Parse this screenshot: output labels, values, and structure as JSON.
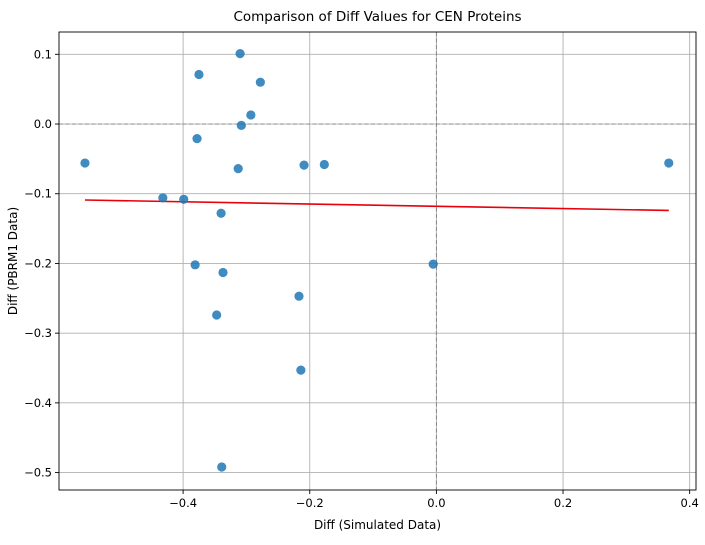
{
  "chart_data": {
    "type": "scatter",
    "title": "Comparison of Diff Values for CEN Proteins",
    "xlabel": "Diff (Simulated Data)",
    "ylabel": "Diff (PBRM1 Data)",
    "xlim": [
      -0.596,
      0.41
    ],
    "ylim": [
      -0.525,
      0.132
    ],
    "x_ticks": [
      -0.4,
      -0.2,
      0.0,
      0.2,
      0.4
    ],
    "x_tick_labels": [
      "−0.4",
      "−0.2",
      "0.0",
      "0.2",
      "0.4"
    ],
    "y_ticks": [
      0.1,
      0.0,
      -0.1,
      -0.2,
      -0.3,
      -0.4,
      -0.5
    ],
    "y_tick_labels": [
      "0.1",
      "0.0",
      "−0.1",
      "−0.2",
      "−0.3",
      "−0.4",
      "−0.5"
    ],
    "grid": true,
    "reference_lines": {
      "x": 0.0,
      "y": 0.0,
      "style": "dashed",
      "color": "#808080"
    },
    "point_color": "#1f77b4",
    "trend_color": "#e8000b",
    "points": [
      {
        "x": -0.555,
        "y": -0.056
      },
      {
        "x": -0.432,
        "y": -0.106
      },
      {
        "x": -0.399,
        "y": -0.108
      },
      {
        "x": -0.375,
        "y": 0.071
      },
      {
        "x": -0.378,
        "y": -0.021
      },
      {
        "x": -0.381,
        "y": -0.202
      },
      {
        "x": -0.347,
        "y": -0.274
      },
      {
        "x": -0.34,
        "y": -0.128
      },
      {
        "x": -0.337,
        "y": -0.213
      },
      {
        "x": -0.339,
        "y": -0.492
      },
      {
        "x": -0.31,
        "y": 0.101
      },
      {
        "x": -0.313,
        "y": -0.064
      },
      {
        "x": -0.308,
        "y": -0.002
      },
      {
        "x": -0.293,
        "y": 0.013
      },
      {
        "x": -0.278,
        "y": 0.06
      },
      {
        "x": -0.217,
        "y": -0.247
      },
      {
        "x": -0.214,
        "y": -0.353
      },
      {
        "x": -0.209,
        "y": -0.059
      },
      {
        "x": -0.177,
        "y": -0.058
      },
      {
        "x": -0.005,
        "y": -0.201
      },
      {
        "x": 0.367,
        "y": -0.056
      }
    ],
    "trend_line": {
      "x": [
        -0.555,
        0.367
      ],
      "y": [
        -0.109,
        -0.124
      ]
    }
  }
}
